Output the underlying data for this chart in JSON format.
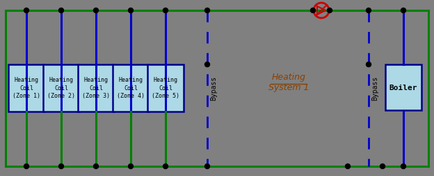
{
  "bg_color": "#808080",
  "green_color": "#008000",
  "blue_color": "#0000cc",
  "red_color": "#cc0000",
  "box_fill": "#add8e6",
  "box_edge": "#00008b",
  "dot_color": "#000000",
  "text_color": "#000000",
  "title_color": "#8B4000",
  "bypass_color": "#000000",
  "title": "Heating\nSystem 1",
  "boiler_label": "Boiler",
  "bypass_label": "Bypass",
  "coil_labels": [
    "Heating\nCoil\n(Zone 1)",
    "Heating\nCoil\n(Zone 2)",
    "Heating\nCoil\n(Zone 3)",
    "Heating\nCoil\n(Zone 4)",
    "Heating\nCoil\n(Zone 5)"
  ],
  "fig_width": 6.24,
  "fig_height": 2.54,
  "dpi": 100
}
